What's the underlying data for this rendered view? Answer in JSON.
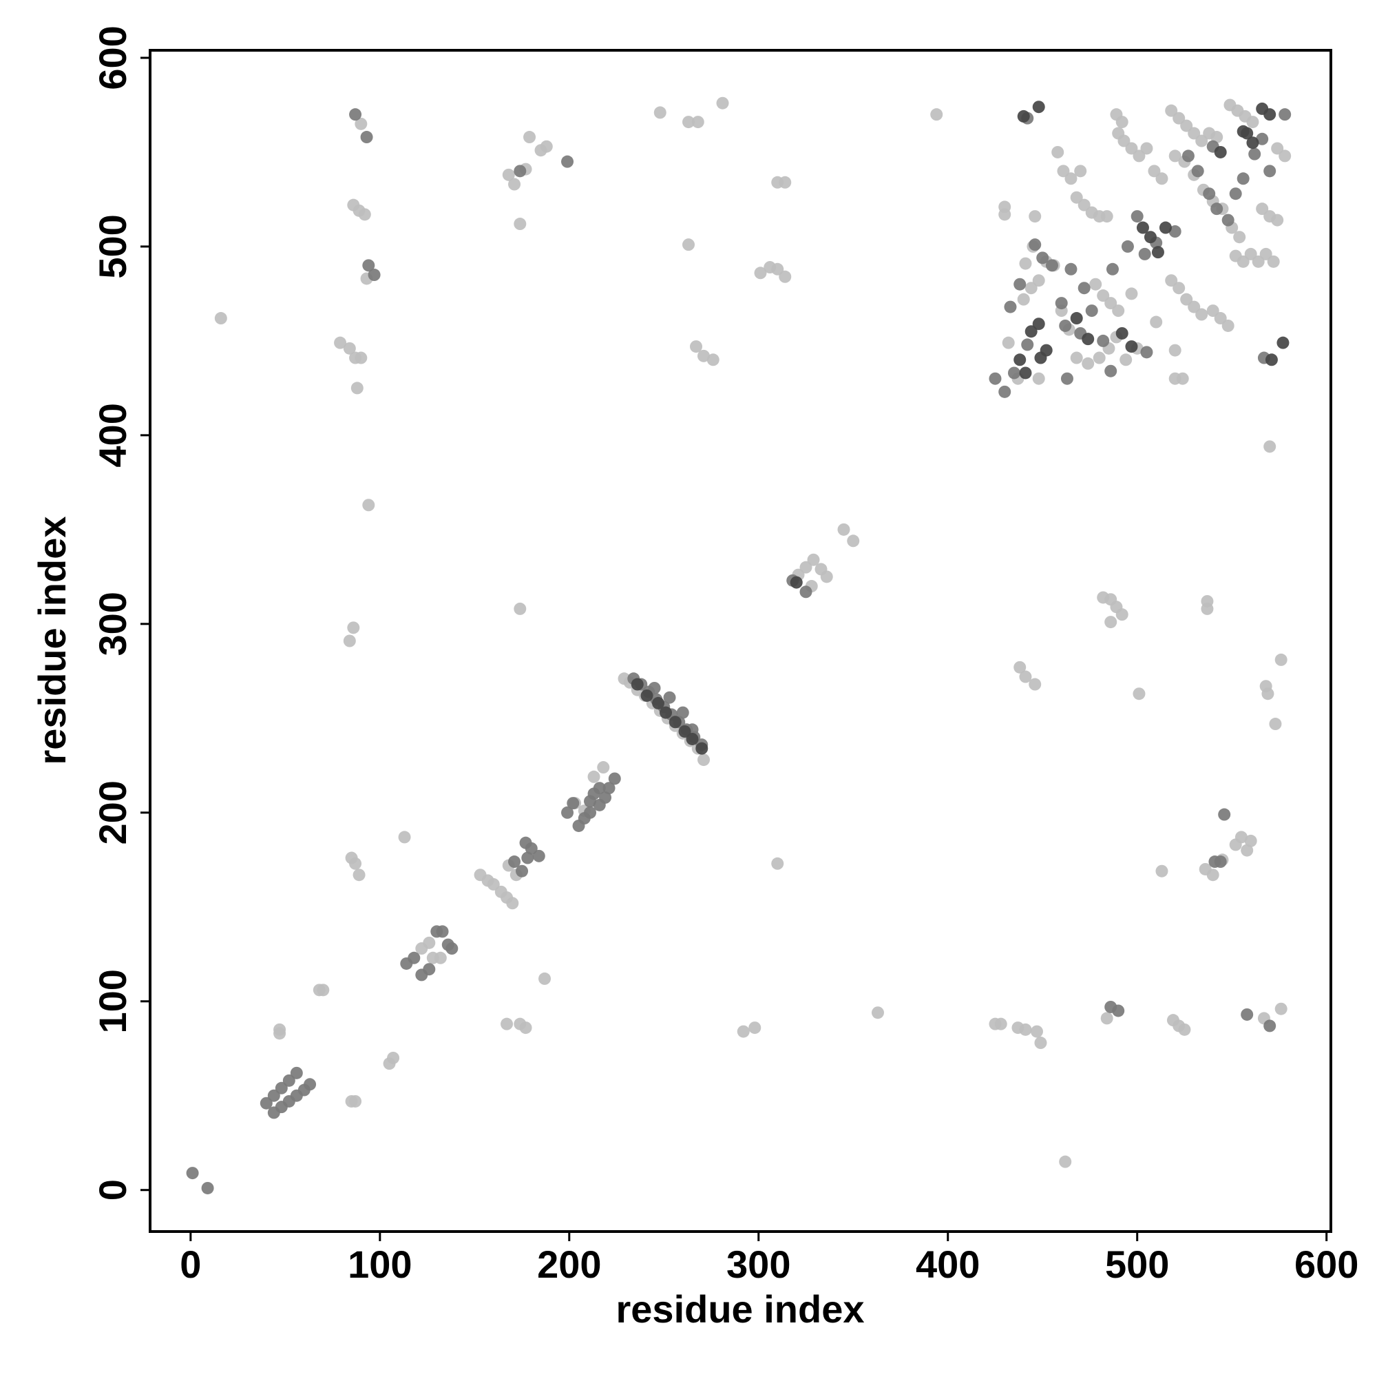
{
  "chart_data": {
    "type": "scatter",
    "xlabel": "residue index",
    "ylabel": "residue index",
    "xlim": [
      -21.4,
      602.3
    ],
    "ylim": [
      -22,
      604
    ],
    "xticks": [
      0,
      100,
      200,
      300,
      400,
      500,
      600
    ],
    "yticks": [
      0,
      100,
      200,
      300,
      400,
      500,
      600
    ],
    "series": [
      {
        "color": "#bebebe",
        "x": [
          47,
          47,
          85,
          87,
          68,
          70,
          105,
          107,
          113,
          187,
          122,
          126,
          128,
          132,
          153,
          157,
          160,
          164,
          167,
          170,
          168,
          172,
          167,
          174,
          177,
          85,
          87,
          89,
          203,
          208,
          213,
          218,
          229,
          232,
          236,
          240,
          244,
          248,
          252,
          256,
          260,
          264,
          268,
          271,
          321,
          325,
          329,
          333,
          336,
          328,
          345,
          350,
          90,
          93,
          86,
          89,
          92,
          79,
          84,
          87,
          90,
          88,
          94,
          86,
          84,
          16,
          168,
          171,
          174,
          177,
          179,
          185,
          188,
          248,
          263,
          268,
          281,
          263,
          267,
          271,
          276,
          301,
          306,
          310,
          314,
          310,
          314,
          174,
          310,
          292,
          298,
          363,
          394,
          425,
          428,
          437,
          441,
          447,
          449,
          484,
          462,
          438,
          441,
          446,
          482,
          486,
          489,
          492,
          486,
          501,
          513,
          519,
          522,
          525,
          537,
          537,
          540,
          545,
          552,
          555,
          558,
          560,
          567,
          568,
          569,
          573,
          570,
          576,
          576,
          536,
          430,
          430,
          432,
          441,
          445,
          446,
          458,
          461,
          465,
          470,
          468,
          472,
          476,
          480,
          484,
          478,
          482,
          486,
          490,
          489,
          485,
          480,
          474,
          468,
          464,
          460,
          456,
          452,
          448,
          444,
          440,
          437,
          448,
          490,
          493,
          497,
          501,
          505,
          489,
          492,
          509,
          513,
          518,
          522,
          526,
          530,
          534,
          538,
          542,
          518,
          522,
          526,
          530,
          534,
          520,
          520,
          524,
          540,
          544,
          548,
          552,
          556,
          560,
          564,
          568,
          572,
          566,
          570,
          574,
          574,
          578,
          549,
          553,
          557,
          561,
          550,
          554,
          520,
          525,
          530,
          535,
          540,
          545,
          510,
          497,
          494,
          500
        ],
        "y": [
          85,
          83,
          47,
          47,
          106,
          106,
          67,
          70,
          187,
          112,
          128,
          131,
          123,
          123,
          167,
          164,
          162,
          158,
          155,
          152,
          172,
          167,
          88,
          88,
          86,
          176,
          173,
          167,
          205,
          201,
          219,
          224,
          271,
          269,
          265,
          262,
          258,
          254,
          250,
          246,
          242,
          238,
          234,
          228,
          326,
          330,
          334,
          329,
          325,
          320,
          350,
          344,
          565,
          483,
          522,
          519,
          517,
          449,
          446,
          441,
          441,
          425,
          363,
          298,
          291,
          462,
          538,
          533,
          512,
          541,
          558,
          551,
          553,
          571,
          566,
          566,
          576,
          501,
          447,
          442,
          440,
          486,
          489,
          488,
          484,
          534,
          534,
          308,
          173,
          84,
          86,
          94,
          570,
          88,
          88,
          86,
          85,
          84,
          78,
          91,
          15,
          277,
          272,
          268,
          314,
          313,
          309,
          305,
          301,
          263,
          169,
          90,
          87,
          85,
          312,
          308,
          167,
          175,
          183,
          187,
          180,
          185,
          91,
          267,
          263,
          247,
          394,
          281,
          96,
          170,
          521,
          517,
          449,
          491,
          500,
          516,
          550,
          540,
          536,
          540,
          526,
          522,
          518,
          516,
          516,
          480,
          474,
          470,
          466,
          452,
          446,
          441,
          438,
          441,
          456,
          466,
          490,
          492,
          482,
          478,
          472,
          430,
          430,
          560,
          556,
          552,
          548,
          552,
          570,
          566,
          540,
          536,
          572,
          568,
          564,
          560,
          556,
          560,
          558,
          482,
          478,
          472,
          468,
          464,
          445,
          430,
          430,
          466,
          462,
          458,
          495,
          492,
          496,
          492,
          496,
          492,
          520,
          516,
          514,
          552,
          548,
          575,
          572,
          569,
          566,
          510,
          505,
          548,
          545,
          538,
          530,
          524,
          520,
          460,
          475,
          440,
          446
        ]
      },
      {
        "color": "#7a7a7a",
        "x": [
          1,
          9,
          40,
          44,
          48,
          52,
          56,
          60,
          63,
          44,
          48,
          52,
          56,
          114,
          118,
          122,
          126,
          130,
          133,
          136,
          138,
          175,
          178,
          180,
          184,
          171,
          177,
          199,
          202,
          205,
          208,
          211,
          213,
          216,
          219,
          221,
          224,
          211,
          216,
          234,
          238,
          242,
          246,
          250,
          254,
          258,
          262,
          266,
          270,
          245,
          253,
          260,
          265,
          325,
          318,
          87,
          93,
          94,
          97,
          199,
          174,
          486,
          490,
          546,
          558,
          570,
          541,
          544,
          425,
          430,
          433,
          438,
          442,
          446,
          450,
          455,
          460,
          465,
          472,
          476,
          482,
          487,
          486,
          495,
          500,
          504,
          510,
          520,
          527,
          532,
          538,
          542,
          548,
          552,
          556,
          540,
          562,
          566,
          570,
          578,
          567,
          505,
          463,
          435,
          442,
          462,
          470
        ],
        "y": [
          9,
          1,
          46,
          41,
          44,
          47,
          50,
          53,
          56,
          50,
          54,
          58,
          62,
          120,
          123,
          114,
          117,
          137,
          137,
          130,
          128,
          169,
          176,
          181,
          177,
          174,
          184,
          200,
          205,
          193,
          197,
          200,
          210,
          213,
          208,
          213,
          218,
          206,
          204,
          271,
          268,
          264,
          260,
          256,
          252,
          248,
          244,
          240,
          236,
          266,
          261,
          253,
          244,
          317,
          323,
          570,
          558,
          490,
          485,
          545,
          540,
          97,
          95,
          199,
          93,
          87,
          174,
          174,
          430,
          423,
          468,
          480,
          448,
          501,
          494,
          490,
          470,
          488,
          478,
          466,
          450,
          488,
          434,
          500,
          516,
          496,
          502,
          508,
          548,
          540,
          528,
          520,
          514,
          528,
          536,
          553,
          549,
          557,
          540,
          570,
          441,
          444,
          430,
          433,
          568,
          458,
          454
        ]
      },
      {
        "color": "#454545",
        "x": [
          236,
          241,
          247,
          251,
          256,
          261,
          265,
          270,
          320,
          438,
          441,
          444,
          448,
          452,
          449,
          503,
          507,
          511,
          515,
          492,
          497,
          474,
          468,
          544,
          556,
          561,
          566,
          570,
          577,
          571,
          448,
          440,
          558
        ],
        "y": [
          268,
          262,
          258,
          253,
          248,
          243,
          239,
          234,
          322,
          440,
          433,
          455,
          459,
          445,
          441,
          510,
          505,
          497,
          510,
          454,
          447,
          451,
          462,
          550,
          561,
          555,
          573,
          570,
          449,
          440,
          574,
          569,
          560
        ]
      }
    ]
  }
}
